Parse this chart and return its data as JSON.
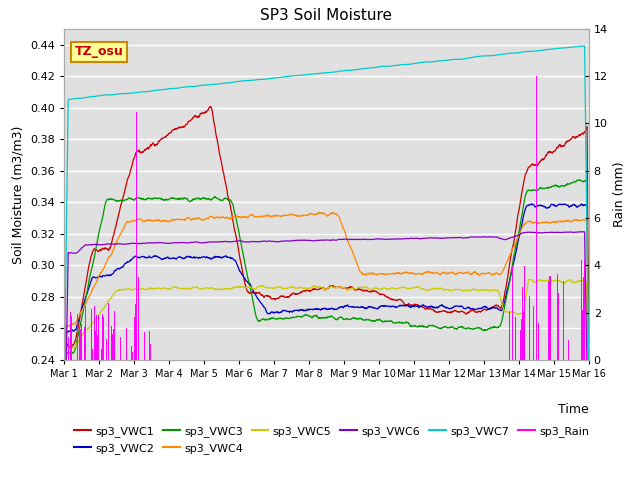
{
  "title": "SP3 Soil Moisture",
  "xlabel": "Time",
  "ylabel_left": "Soil Moisture (m3/m3)",
  "ylabel_right": "Rain (mm)",
  "xlim": [
    0,
    15
  ],
  "ylim_left": [
    0.24,
    0.45
  ],
  "ylim_right": [
    0,
    14
  ],
  "xtick_labels": [
    "Mar 1",
    "Mar 2",
    "Mar 3",
    "Mar 4",
    "Mar 5",
    "Mar 6",
    "Mar 7",
    "Mar 8",
    "Mar 9",
    "Mar 10",
    "Mar 11",
    "Mar 12",
    "Mar 13",
    "Mar 14",
    "Mar 15",
    "Mar 16"
  ],
  "ytick_left": [
    0.24,
    0.26,
    0.28,
    0.3,
    0.32,
    0.34,
    0.36,
    0.38,
    0.4,
    0.42,
    0.44
  ],
  "ytick_right": [
    0,
    2,
    4,
    6,
    8,
    10,
    12,
    14
  ],
  "colors": {
    "VWC1": "#cc0000",
    "VWC2": "#0000cc",
    "VWC3": "#009900",
    "VWC4": "#ff8800",
    "VWC5": "#cccc00",
    "VWC6": "#8800cc",
    "VWC7": "#00cccc",
    "Rain": "#ff00ff"
  },
  "bg_color": "#e0e0e0",
  "tz_label": "TZ_osu",
  "tz_bg": "#ffff99",
  "tz_border": "#cc8800"
}
